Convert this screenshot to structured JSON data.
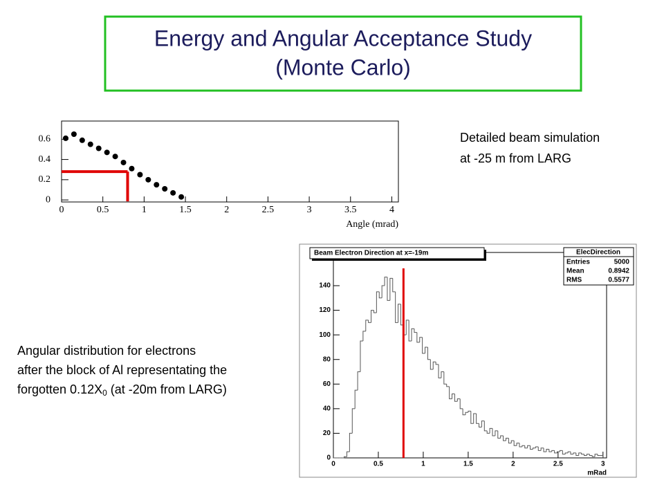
{
  "title": [
    "Energy and Angular Acceptance Study",
    "(Monte Carlo)"
  ],
  "notes": {
    "right": [
      "Detailed beam simulation",
      "at -25 m from LARG"
    ],
    "left": [
      "Angular distribution for electrons",
      "after the block of Al representating the"
    ],
    "left_last": {
      "text": "forgotten 0.12X",
      "sub": "0",
      "tail": " (at -20m from LARG)"
    }
  },
  "chart_data": [
    {
      "type": "scatter",
      "xlabel": "Angle (mrad)",
      "color": "#000000",
      "x": [
        0.05,
        0.15,
        0.25,
        0.35,
        0.45,
        0.55,
        0.65,
        0.75,
        0.85,
        0.95,
        1.05,
        1.15,
        1.25,
        1.35,
        1.45
      ],
      "values": [
        0.61,
        0.65,
        0.59,
        0.55,
        0.51,
        0.47,
        0.43,
        0.37,
        0.31,
        0.25,
        0.2,
        0.15,
        0.11,
        0.07,
        0.03
      ],
      "xlim": [
        0,
        4.08
      ],
      "ylim": [
        -0.02,
        0.78
      ],
      "xticks": [
        0,
        0.5,
        1,
        1.5,
        2,
        2.5,
        3,
        3.5,
        4
      ],
      "yticks": [
        0,
        0.2,
        0.4,
        0.6
      ],
      "reference": {
        "x": 0.8,
        "y": 0.28,
        "color": "#e00000"
      }
    },
    {
      "type": "histogram",
      "title": "Beam Electron Direction at x=-19m",
      "xlabel": "mRad",
      "color": "#555555",
      "bins": [
        0,
        0.03,
        0.06,
        0.09,
        0.12,
        0.15,
        0.18,
        0.21,
        0.24,
        0.27,
        0.3,
        0.33,
        0.36,
        0.39,
        0.42,
        0.45,
        0.48,
        0.51,
        0.54,
        0.57,
        0.6,
        0.63,
        0.66,
        0.69,
        0.72,
        0.75,
        0.78,
        0.81,
        0.84,
        0.87,
        0.9,
        0.93,
        0.96,
        0.99,
        1.02,
        1.05,
        1.08,
        1.11,
        1.14,
        1.17,
        1.2,
        1.23,
        1.26,
        1.29,
        1.32,
        1.35,
        1.38,
        1.41,
        1.44,
        1.47,
        1.5,
        1.53,
        1.56,
        1.59,
        1.62,
        1.65,
        1.68,
        1.71,
        1.74,
        1.77,
        1.8,
        1.83,
        1.86,
        1.89,
        1.92,
        1.95,
        1.98,
        2.01,
        2.04,
        2.07,
        2.1,
        2.13,
        2.16,
        2.19,
        2.22,
        2.25,
        2.28,
        2.31,
        2.34,
        2.37,
        2.4,
        2.43,
        2.46,
        2.49,
        2.52,
        2.55,
        2.58,
        2.61,
        2.64,
        2.67,
        2.7,
        2.73,
        2.76,
        2.79,
        2.82,
        2.85,
        2.88,
        2.91,
        2.94,
        2.97,
        3.0
      ],
      "values": [
        0,
        0,
        0,
        0,
        1,
        5,
        20,
        40,
        55,
        70,
        95,
        103,
        112,
        110,
        120,
        118,
        135,
        130,
        140,
        147,
        128,
        146,
        135,
        110,
        125,
        108,
        100,
        112,
        95,
        105,
        102,
        94,
        98,
        85,
        90,
        80,
        72,
        78,
        76,
        65,
        70,
        60,
        58,
        48,
        52,
        46,
        48,
        40,
        35,
        37,
        38,
        28,
        36,
        28,
        25,
        30,
        22,
        20,
        24,
        18,
        22,
        16,
        18,
        14,
        16,
        12,
        14,
        10,
        12,
        9,
        10,
        8,
        10,
        7,
        8,
        9,
        6,
        8,
        5,
        7,
        5,
        6,
        4,
        5,
        6,
        3,
        4,
        5,
        3,
        4,
        2,
        4,
        3,
        2,
        3,
        2,
        1,
        3,
        2,
        2
      ],
      "xlim": [
        0,
        3.04
      ],
      "ylim": [
        0,
        167
      ],
      "xticks": [
        0,
        0.5,
        1,
        1.5,
        2,
        2.5,
        3
      ],
      "yticks": [
        0,
        20,
        40,
        60,
        80,
        100,
        120,
        140
      ],
      "stats": {
        "title": "ElecDirection",
        "entries_label": "Entries",
        "entries": 5000,
        "mean_label": "Mean",
        "mean": 0.8942,
        "rms_label": "RMS",
        "rms": 0.5577
      },
      "reference": {
        "x": 0.78,
        "color": "#e00000"
      }
    }
  ]
}
